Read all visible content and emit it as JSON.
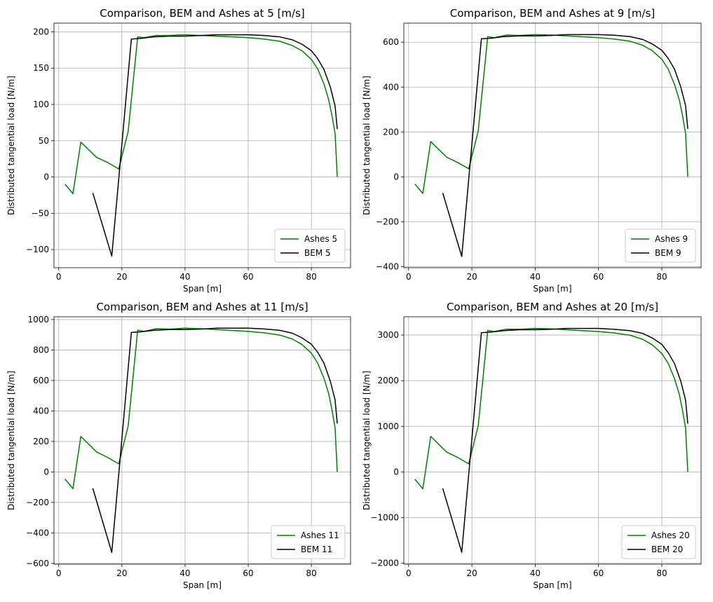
{
  "chart_data": [
    {
      "type": "line",
      "title": "Comparison, BEM and Ashes at 5 [m/s]",
      "xlabel": "Span [m]",
      "ylabel": "Distributed tangential load [N/m]",
      "xlim": [
        -1.5,
        92.4
      ],
      "ylim": [
        -125,
        212
      ],
      "xticks": [
        0,
        20,
        40,
        60,
        80
      ],
      "xtick_labels": [
        "0",
        "20",
        "40",
        "60",
        "80"
      ],
      "yticks": [
        -100,
        -50,
        0,
        50,
        100,
        150,
        200
      ],
      "ytick_labels": [
        "−100",
        "−50",
        "0",
        "50",
        "100",
        "150",
        "200"
      ],
      "grid": true,
      "legend": "lower-right",
      "series": [
        {
          "name": "Ashes 5",
          "color": "#008000",
          "x": [
            2.0,
            4.5,
            7.0,
            12.0,
            15.5,
            19.0,
            22.0,
            25.0,
            27.0,
            31.0,
            35.0,
            40.0,
            45.0,
            50.0,
            55.0,
            60.0,
            65.0,
            70.0,
            74.0,
            77.0,
            80.0,
            82.0,
            84.0,
            85.5,
            86.5,
            87.5,
            88.2
          ],
          "y": [
            -10,
            -23,
            48,
            27,
            20,
            11,
            63,
            193,
            192,
            195,
            195,
            196,
            195,
            194,
            193,
            192,
            190,
            187,
            181,
            174,
            162,
            149,
            128,
            106,
            85,
            60,
            0
          ]
        },
        {
          "name": "BEM 5",
          "color": "#000000",
          "x": [
            10.8,
            16.8,
            23.0,
            26.0,
            30.0,
            35.0,
            40.0,
            45.0,
            50.0,
            55.0,
            60.0,
            65.0,
            70.0,
            74.0,
            77.0,
            80.0,
            82.0,
            84.0,
            86.0,
            87.5,
            88.2
          ],
          "y": [
            -22,
            -109,
            190,
            191,
            193,
            194,
            194,
            195,
            196,
            196,
            196,
            195,
            193,
            189,
            183,
            174,
            163,
            148,
            124,
            98,
            66
          ]
        }
      ]
    },
    {
      "type": "line",
      "title": "Comparison, BEM and Ashes at 9 [m/s]",
      "xlabel": "Span [m]",
      "ylabel": "Distributed tangential load [N/m]",
      "xlim": [
        -1.5,
        92.4
      ],
      "ylim": [
        -405,
        685
      ],
      "xticks": [
        0,
        20,
        40,
        60,
        80
      ],
      "xtick_labels": [
        "0",
        "20",
        "40",
        "60",
        "80"
      ],
      "yticks": [
        -400,
        -200,
        0,
        200,
        400,
        600
      ],
      "ytick_labels": [
        "−400",
        "−200",
        "0",
        "200",
        "400",
        "600"
      ],
      "grid": true,
      "legend": "lower-right",
      "series": [
        {
          "name": "Ashes 9",
          "color": "#008000",
          "x": [
            2.0,
            4.5,
            7.0,
            12.0,
            15.5,
            19.0,
            22.0,
            25.0,
            27.0,
            31.0,
            35.0,
            40.0,
            45.0,
            50.0,
            55.0,
            60.0,
            65.0,
            70.0,
            74.0,
            77.0,
            80.0,
            82.0,
            84.0,
            85.5,
            86.5,
            87.5,
            88.2
          ],
          "y": [
            -32,
            -74,
            157,
            88,
            64,
            36,
            204,
            625,
            620,
            632,
            630,
            634,
            632,
            628,
            624,
            620,
            614,
            604,
            586,
            562,
            524,
            480,
            412,
            344,
            276,
            194,
            0
          ]
        },
        {
          "name": "BEM 9",
          "color": "#000000",
          "x": [
            10.8,
            16.8,
            23.0,
            26.0,
            30.0,
            35.0,
            40.0,
            45.0,
            50.0,
            55.0,
            60.0,
            65.0,
            70.0,
            74.0,
            77.0,
            80.0,
            82.0,
            84.0,
            86.0,
            87.5,
            88.2
          ],
          "y": [
            -72,
            -355,
            615,
            618,
            625,
            628,
            628,
            630,
            634,
            634,
            634,
            631,
            625,
            612,
            592,
            564,
            528,
            480,
            400,
            318,
            214
          ]
        }
      ]
    },
    {
      "type": "line",
      "title": "Comparison, BEM and Ashes at 11 [m/s]",
      "xlabel": "Span [m]",
      "ylabel": "Distributed tangential load [N/m]",
      "xlim": [
        -1.5,
        92.4
      ],
      "ylim": [
        -605,
        1018
      ],
      "xticks": [
        0,
        20,
        40,
        60,
        80
      ],
      "xtick_labels": [
        "0",
        "20",
        "40",
        "60",
        "80"
      ],
      "yticks": [
        -600,
        -400,
        -200,
        0,
        200,
        400,
        600,
        800,
        1000
      ],
      "ytick_labels": [
        "−600",
        "−400",
        "−200",
        "0",
        "200",
        "400",
        "600",
        "800",
        "1000"
      ],
      "grid": true,
      "legend": "lower-right",
      "series": [
        {
          "name": "Ashes 11",
          "color": "#008000",
          "x": [
            2.0,
            4.5,
            7.0,
            12.0,
            15.5,
            19.0,
            22.0,
            25.0,
            27.0,
            31.0,
            35.0,
            40.0,
            45.0,
            50.0,
            55.0,
            60.0,
            65.0,
            70.0,
            74.0,
            77.0,
            80.0,
            82.0,
            84.0,
            85.5,
            86.5,
            87.5,
            88.2
          ],
          "y": [
            -47,
            -110,
            233,
            131,
            95,
            53,
            303,
            930,
            922,
            940,
            937,
            943,
            940,
            934,
            928,
            922,
            913,
            898,
            872,
            836,
            779,
            714,
            613,
            512,
            410,
            289,
            0
          ]
        },
        {
          "name": "BEM 11",
          "color": "#000000",
          "x": [
            10.8,
            16.8,
            23.0,
            26.0,
            30.0,
            35.0,
            40.0,
            45.0,
            50.0,
            55.0,
            60.0,
            65.0,
            70.0,
            74.0,
            77.0,
            80.0,
            82.0,
            84.0,
            86.0,
            87.5,
            88.2
          ],
          "y": [
            -108,
            -528,
            915,
            919,
            929,
            934,
            934,
            937,
            943,
            943,
            943,
            938,
            929,
            910,
            880,
            838,
            785,
            713,
            595,
            473,
            318
          ]
        }
      ]
    },
    {
      "type": "line",
      "title": "Comparison, BEM and Ashes at 20 [m/s]",
      "xlabel": "Span [m]",
      "ylabel": "Distributed tangential load [N/m]",
      "xlim": [
        -1.5,
        92.4
      ],
      "ylim": [
        -2020,
        3400
      ],
      "xticks": [
        0,
        20,
        40,
        60,
        80
      ],
      "xtick_labels": [
        "0",
        "20",
        "40",
        "60",
        "80"
      ],
      "yticks": [
        -2000,
        -1000,
        0,
        1000,
        2000,
        3000
      ],
      "ytick_labels": [
        "−2000",
        "−1000",
        "0",
        "1000",
        "2000",
        "3000"
      ],
      "grid": true,
      "legend": "lower-right",
      "series": [
        {
          "name": "Ashes 20",
          "color": "#008000",
          "x": [
            2.0,
            4.5,
            7.0,
            12.0,
            15.5,
            19.0,
            22.0,
            25.0,
            27.0,
            31.0,
            35.0,
            40.0,
            45.0,
            50.0,
            55.0,
            60.0,
            65.0,
            70.0,
            74.0,
            77.0,
            80.0,
            82.0,
            84.0,
            85.5,
            86.5,
            87.5,
            88.2
          ],
          "y": [
            -158,
            -370,
            780,
            436,
            318,
            178,
            1010,
            3100,
            3075,
            3130,
            3125,
            3145,
            3135,
            3115,
            3095,
            3075,
            3045,
            2995,
            2905,
            2785,
            2595,
            2380,
            2045,
            1705,
            1365,
            965,
            0
          ]
        },
        {
          "name": "BEM 20",
          "color": "#000000",
          "x": [
            10.8,
            16.8,
            23.0,
            26.0,
            30.0,
            35.0,
            40.0,
            45.0,
            50.0,
            55.0,
            60.0,
            65.0,
            70.0,
            74.0,
            77.0,
            80.0,
            82.0,
            84.0,
            86.0,
            87.5,
            88.2
          ],
          "y": [
            -360,
            -1760,
            3050,
            3065,
            3095,
            3115,
            3115,
            3125,
            3145,
            3145,
            3145,
            3125,
            3095,
            3035,
            2935,
            2795,
            2615,
            2375,
            1985,
            1575,
            1060
          ]
        }
      ]
    }
  ]
}
